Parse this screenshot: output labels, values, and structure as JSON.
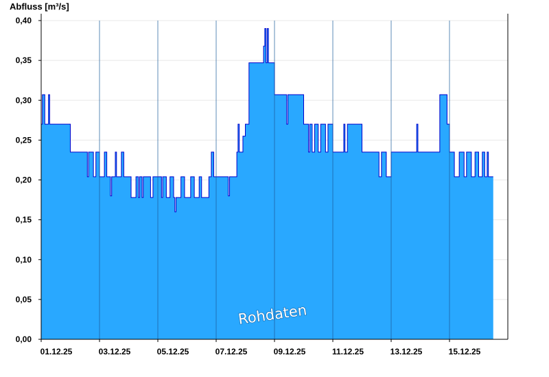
{
  "colors": {
    "fill": "#29a8ff",
    "line": "#0000cc",
    "axis": "#000000",
    "grid": "#e8e8e8",
    "divider": "#1a5a99"
  },
  "chart_data": {
    "type": "area",
    "ylabel": "Abfluss [m³/s]",
    "watermark": "Rohdaten",
    "ylim": [
      0,
      0.4
    ],
    "xlim": [
      "2025-12-01",
      "2025-12-17"
    ],
    "yticks": [
      {
        "v": 0.0,
        "label": "0,00"
      },
      {
        "v": 0.05,
        "label": "0,05"
      },
      {
        "v": 0.1,
        "label": "0,10"
      },
      {
        "v": 0.15,
        "label": "0,15"
      },
      {
        "v": 0.2,
        "label": "0,20"
      },
      {
        "v": 0.25,
        "label": "0,25"
      },
      {
        "v": 0.3,
        "label": "0,30"
      },
      {
        "v": 0.35,
        "label": "0,35"
      },
      {
        "v": 0.4,
        "label": "0,40"
      }
    ],
    "xticks": [
      {
        "date": "2025-12-01",
        "label": "01.12.25"
      },
      {
        "date": "2025-12-03",
        "label": "03.12.25"
      },
      {
        "date": "2025-12-05",
        "label": "05.12.25"
      },
      {
        "date": "2025-12-07",
        "label": "07.12.25"
      },
      {
        "date": "2025-12-09",
        "label": "09.12.25"
      },
      {
        "date": "2025-12-11",
        "label": "11.12.25"
      },
      {
        "date": "2025-12-13",
        "label": "13.12.25"
      },
      {
        "date": "2025-12-15",
        "label": "15.12.25"
      }
    ],
    "grid": true,
    "series": [
      {
        "step": true,
        "points": [
          [
            "2025-12-01 00:00",
            0.27
          ],
          [
            "2025-12-01 01:00",
            0.307
          ],
          [
            "2025-12-01 03:00",
            0.27
          ],
          [
            "2025-12-01 05:00",
            0.27
          ],
          [
            "2025-12-01 06:00",
            0.307
          ],
          [
            "2025-12-01 07:00",
            0.27
          ],
          [
            "2025-12-02 00:00",
            0.235
          ],
          [
            "2025-12-02 14:00",
            0.204
          ],
          [
            "2025-12-02 15:00",
            0.235
          ],
          [
            "2025-12-02 19:00",
            0.204
          ],
          [
            "2025-12-02 21:00",
            0.235
          ],
          [
            "2025-12-03 00:00",
            0.204
          ],
          [
            "2025-12-03 04:00",
            0.235
          ],
          [
            "2025-12-03 06:00",
            0.204
          ],
          [
            "2025-12-03 09:00",
            0.18
          ],
          [
            "2025-12-03 10:00",
            0.204
          ],
          [
            "2025-12-03 13:00",
            0.235
          ],
          [
            "2025-12-03 14:00",
            0.204
          ],
          [
            "2025-12-03 18:00",
            0.235
          ],
          [
            "2025-12-03 20:00",
            0.204
          ],
          [
            "2025-12-04 02:00",
            0.178
          ],
          [
            "2025-12-04 06:00",
            0.204
          ],
          [
            "2025-12-04 08:00",
            0.178
          ],
          [
            "2025-12-04 09:00",
            0.204
          ],
          [
            "2025-12-04 11:00",
            0.178
          ],
          [
            "2025-12-04 12:00",
            0.204
          ],
          [
            "2025-12-04 18:00",
            0.178
          ],
          [
            "2025-12-04 20:00",
            0.204
          ],
          [
            "2025-12-05 03:00",
            0.178
          ],
          [
            "2025-12-05 04:00",
            0.204
          ],
          [
            "2025-12-05 07:00",
            0.178
          ],
          [
            "2025-12-05 10:00",
            0.204
          ],
          [
            "2025-12-05 13:00",
            0.178
          ],
          [
            "2025-12-05 14:00",
            0.16
          ],
          [
            "2025-12-05 15:00",
            0.178
          ],
          [
            "2025-12-05 19:00",
            0.204
          ],
          [
            "2025-12-05 22:00",
            0.178
          ],
          [
            "2025-12-06 03:00",
            0.204
          ],
          [
            "2025-12-06 06:00",
            0.178
          ],
          [
            "2025-12-06 10:00",
            0.204
          ],
          [
            "2025-12-06 12:00",
            0.178
          ],
          [
            "2025-12-06 18:00",
            0.204
          ],
          [
            "2025-12-06 20:00",
            0.235
          ],
          [
            "2025-12-06 22:00",
            0.204
          ],
          [
            "2025-12-07 10:00",
            0.18
          ],
          [
            "2025-12-07 11:00",
            0.204
          ],
          [
            "2025-12-07 17:00",
            0.235
          ],
          [
            "2025-12-07 18:00",
            0.27
          ],
          [
            "2025-12-07 19:00",
            0.235
          ],
          [
            "2025-12-07 22:00",
            0.255
          ],
          [
            "2025-12-08 00:00",
            0.27
          ],
          [
            "2025-12-08 03:00",
            0.347
          ],
          [
            "2025-12-08 15:00",
            0.368
          ],
          [
            "2025-12-08 16:00",
            0.39
          ],
          [
            "2025-12-08 17:00",
            0.347
          ],
          [
            "2025-12-08 18:00",
            0.39
          ],
          [
            "2025-12-08 19:00",
            0.347
          ],
          [
            "2025-12-09 00:00",
            0.307
          ],
          [
            "2025-12-09 10:00",
            0.27
          ],
          [
            "2025-12-09 11:00",
            0.307
          ],
          [
            "2025-12-10 00:00",
            0.27
          ],
          [
            "2025-12-10 04:00",
            0.235
          ],
          [
            "2025-12-10 05:00",
            0.27
          ],
          [
            "2025-12-10 07:00",
            0.235
          ],
          [
            "2025-12-10 09:00",
            0.27
          ],
          [
            "2025-12-10 12:00",
            0.235
          ],
          [
            "2025-12-10 14:00",
            0.27
          ],
          [
            "2025-12-10 18:00",
            0.235
          ],
          [
            "2025-12-10 20:00",
            0.27
          ],
          [
            "2025-12-11 00:00",
            0.235
          ],
          [
            "2025-12-11 09:00",
            0.27
          ],
          [
            "2025-12-11 10:00",
            0.235
          ],
          [
            "2025-12-11 12:00",
            0.27
          ],
          [
            "2025-12-12 00:00",
            0.235
          ],
          [
            "2025-12-12 14:00",
            0.204
          ],
          [
            "2025-12-12 16:00",
            0.235
          ],
          [
            "2025-12-12 20:00",
            0.204
          ],
          [
            "2025-12-13 00:00",
            0.235
          ],
          [
            "2025-12-13 21:00",
            0.27
          ],
          [
            "2025-12-13 22:00",
            0.235
          ],
          [
            "2025-12-14 16:00",
            0.307
          ],
          [
            "2025-12-14 22:00",
            0.27
          ],
          [
            "2025-12-15 00:00",
            0.235
          ],
          [
            "2025-12-15 04:00",
            0.204
          ],
          [
            "2025-12-15 08:00",
            0.235
          ],
          [
            "2025-12-15 12:00",
            0.204
          ],
          [
            "2025-12-15 14:00",
            0.235
          ],
          [
            "2025-12-15 18:00",
            0.204
          ],
          [
            "2025-12-15 21:00",
            0.235
          ],
          [
            "2025-12-16 00:00",
            0.204
          ],
          [
            "2025-12-16 03:00",
            0.235
          ],
          [
            "2025-12-16 05:00",
            0.204
          ],
          [
            "2025-12-16 07:00",
            0.235
          ],
          [
            "2025-12-16 08:00",
            0.204
          ],
          [
            "2025-12-16 12:00",
            0.204
          ]
        ]
      }
    ]
  }
}
